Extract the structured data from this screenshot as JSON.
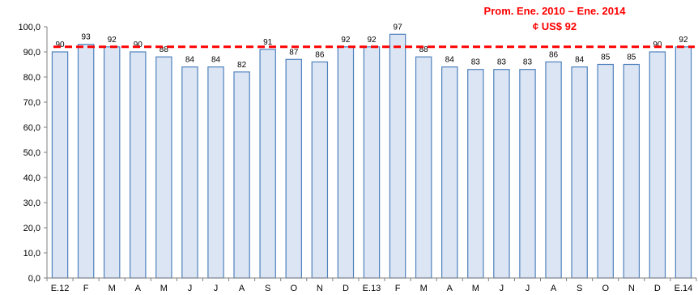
{
  "chart_data": {
    "type": "bar",
    "title": "",
    "xlabel": "",
    "ylabel": "",
    "ylim": [
      0,
      100
    ],
    "yticks": [
      "0,0",
      "10,0",
      "20,0",
      "30,0",
      "40,0",
      "50,0",
      "60,0",
      "70,0",
      "80,0",
      "90,0",
      "100,0"
    ],
    "grid": false,
    "categories": [
      "E.12",
      "F",
      "M",
      "A",
      "M",
      "J",
      "J",
      "A",
      "S",
      "O",
      "N",
      "D",
      "E.13",
      "F",
      "M",
      "A",
      "M",
      "J",
      "J",
      "A",
      "S",
      "O",
      "N",
      "D",
      "E.14"
    ],
    "values": [
      90,
      93,
      92,
      90,
      88,
      84,
      84,
      82,
      91,
      87,
      86,
      92,
      92,
      97,
      88,
      84,
      83,
      83,
      83,
      86,
      84,
      85,
      85,
      90,
      92
    ],
    "reference_line": {
      "value": 92,
      "label_line1": "Prom. Ene. 2010 – Ene. 2014",
      "label_line2": "¢ US$ 92"
    },
    "colors": {
      "bar_fill": "#dbe5f4",
      "bar_stroke": "#4f81bd",
      "reference_line": "#ff0000",
      "axis": "#7f7f7f",
      "text": "#000000"
    }
  }
}
